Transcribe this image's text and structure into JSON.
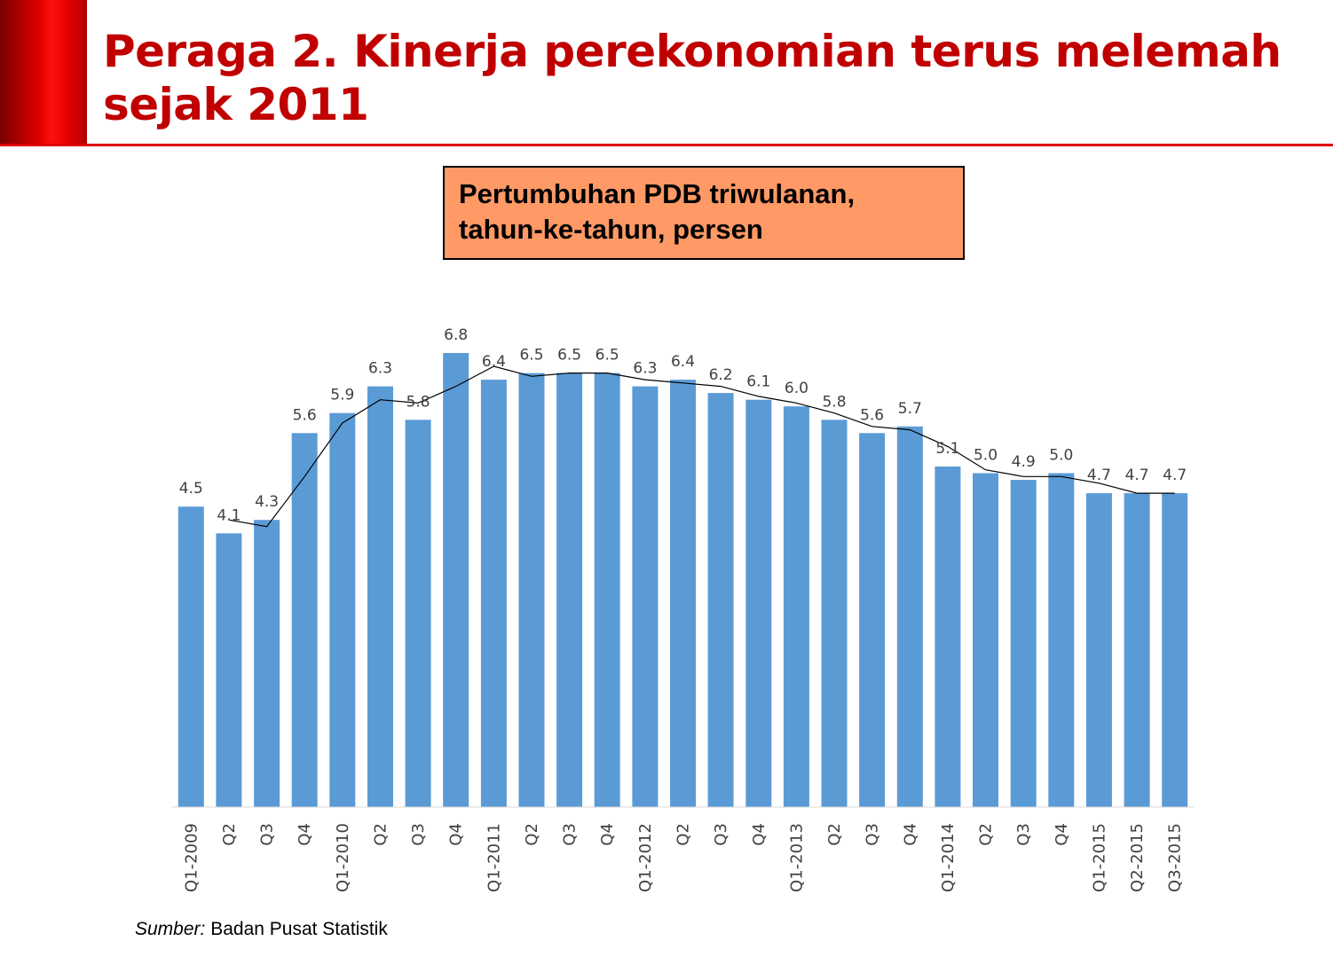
{
  "header": {
    "title": "Peraga 2. Kinerja perekonomian terus melemah sejak 2011"
  },
  "colors": {
    "accent": "#c00000",
    "bar": "#5b9bd5",
    "trend_line": "#000000",
    "title_box": "#ff9966"
  },
  "chart_data": {
    "type": "bar",
    "title": "Pertumbuhan PDB triwulanan,",
    "subtitle": "tahun-ke-tahun, persen",
    "categories": [
      "Q1-2009",
      "Q2",
      "Q3",
      "Q4",
      "Q1-2010",
      "Q2",
      "Q3",
      "Q4",
      "Q1-2011",
      "Q2",
      "Q3",
      "Q4",
      "Q1-2012",
      "Q2",
      "Q3",
      "Q4",
      "Q1-2013",
      "Q2",
      "Q3",
      "Q4",
      "Q1-2014",
      "Q2",
      "Q3",
      "Q4",
      "Q1-2015",
      "Q2-2015",
      "Q3-2015"
    ],
    "values": [
      4.5,
      4.1,
      4.3,
      5.6,
      5.9,
      6.3,
      5.8,
      6.8,
      6.4,
      6.5,
      6.5,
      6.5,
      6.3,
      6.4,
      6.2,
      6.1,
      6.0,
      5.8,
      5.6,
      5.7,
      5.1,
      5.0,
      4.9,
      5.0,
      4.7,
      4.7,
      4.7
    ],
    "value_labels": [
      "4.5",
      "4.1",
      "4.3",
      "5.6",
      "5.9",
      "6.3",
      "5.8",
      "6.8",
      "6.4",
      "6.5",
      "6.5",
      "6.5",
      "6.3",
      "6.4",
      "6.2",
      "6.1",
      "6.0",
      "5.8",
      "5.6",
      "5.7",
      "5.1",
      "5.0",
      "4.9",
      "5.0",
      "4.7",
      "4.7",
      "4.7"
    ],
    "trend_line": "2-period moving average",
    "ylim": [
      0,
      7
    ],
    "grid": false,
    "legend": "none",
    "xlabel": "",
    "ylabel": ""
  },
  "footer": {
    "source_prefix": "Sumber:",
    "source_text": " Badan Pusat Statistik"
  }
}
